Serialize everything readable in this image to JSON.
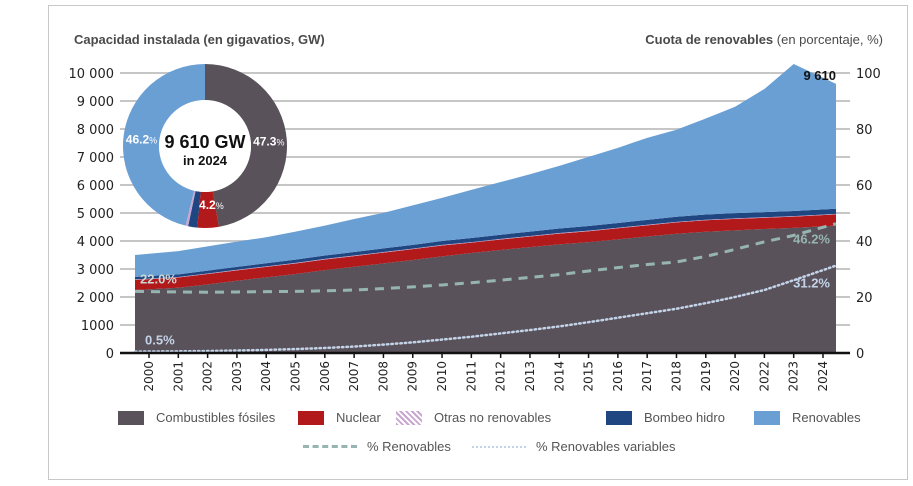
{
  "chart_data": {
    "type": "area",
    "title_left": "Capacidad instalada (en gigavatios, GW)",
    "title_right_bold": "Cuota de renovables",
    "title_right_normal": " (en porcentaje, %)",
    "x": [
      "2000",
      "2001",
      "2002",
      "2003",
      "2004",
      "2005",
      "2006",
      "2007",
      "2008",
      "2009",
      "2010",
      "2011",
      "2012",
      "2013",
      "2014",
      "2015",
      "2016",
      "2017",
      "2018",
      "2019",
      "2020",
      "2022",
      "2023",
      "2024"
    ],
    "ylim": [
      0,
      10000
    ],
    "yticks": [
      "0",
      "1000",
      "2 000",
      "3 000",
      "4 000",
      "5 000",
      "6 000",
      "7 000",
      "8 000",
      "9 000",
      "10 000"
    ],
    "y2lim": [
      0,
      100
    ],
    "y2ticks": [
      "0",
      "20",
      "40",
      "60",
      "80",
      "100"
    ],
    "grid": true,
    "stacked_series": [
      {
        "name": "Combustibles fósiles",
        "color": "#5a525b",
        "values": [
          2250,
          2330,
          2450,
          2580,
          2700,
          2820,
          2960,
          3080,
          3200,
          3320,
          3450,
          3570,
          3680,
          3780,
          3880,
          3960,
          4060,
          4160,
          4260,
          4330,
          4380,
          4430,
          4470,
          4550
        ]
      },
      {
        "name": "Nuclear",
        "color": "#b2191b",
        "values": [
          360,
          365,
          370,
          372,
          375,
          378,
          380,
          382,
          385,
          388,
          390,
          370,
          375,
          380,
          385,
          390,
          395,
          400,
          405,
          410,
          410,
          400,
          400,
          400
        ]
      },
      {
        "name": "Otras no renovables",
        "color": "#c9a6d0",
        "values": [
          20,
          20,
          20,
          20,
          20,
          20,
          20,
          20,
          20,
          20,
          20,
          20,
          20,
          20,
          20,
          20,
          20,
          20,
          20,
          20,
          20,
          20,
          20,
          20
        ]
      },
      {
        "name": "Bombeo hidro",
        "color": "#1f4680",
        "values": [
          90,
          95,
          100,
          105,
          110,
          115,
          120,
          125,
          130,
          135,
          140,
          145,
          150,
          155,
          160,
          165,
          170,
          175,
          180,
          185,
          185,
          180,
          180,
          180
        ]
      },
      {
        "name": "Renovables",
        "color": "#6a9fd4",
        "values": [
          780,
          830,
          870,
          900,
          930,
          1000,
          1070,
          1180,
          1270,
          1410,
          1540,
          1720,
          1880,
          2050,
          2240,
          2470,
          2680,
          2930,
          3110,
          3430,
          3800,
          4400,
          5250,
          4460
        ]
      }
    ],
    "total_label": "9 610",
    "line_series": [
      {
        "name": "% Renovables",
        "style": "dashed",
        "color": "#96b5b0",
        "values": [
          22.0,
          21.8,
          21.7,
          21.8,
          21.9,
          22.0,
          22.2,
          22.5,
          23.0,
          23.6,
          24.3,
          25.1,
          26.0,
          27.0,
          28.0,
          29.3,
          30.5,
          31.6,
          32.5,
          34.5,
          37.0,
          39.7,
          42.0,
          46.2
        ],
        "start_label": "22.0%",
        "end_label": "46.2%"
      },
      {
        "name": "% Renovables variables",
        "style": "dotted",
        "color": "#c4d4e8",
        "values": [
          0.5,
          0.6,
          0.7,
          0.9,
          1.1,
          1.4,
          1.8,
          2.3,
          3.0,
          3.8,
          4.8,
          5.8,
          7.0,
          8.2,
          9.5,
          11.0,
          12.6,
          14.2,
          15.8,
          17.8,
          20.0,
          22.5,
          26.0,
          31.2
        ],
        "start_label": "0.5%",
        "end_label": "31.2%"
      }
    ],
    "donut": {
      "center_value": "9 610 GW",
      "center_sub": "in 2024",
      "slices": [
        {
          "name": "Combustibles fósiles",
          "value": 47.3,
          "label": "47.3",
          "color": "#5a525b"
        },
        {
          "name": "Nuclear",
          "value": 4.2,
          "label": "4.2",
          "color": "#b2191b"
        },
        {
          "name": "Bombeo hidro",
          "value": 1.8,
          "label": "",
          "color": "#1f4680"
        },
        {
          "name": "Otras no renovables",
          "value": 0.5,
          "label": "",
          "color": "#c9a6d0"
        },
        {
          "name": "Renovables",
          "value": 46.2,
          "label": "46.2",
          "color": "#6a9fd4"
        }
      ],
      "pct_sign": "%"
    },
    "legend": {
      "position": "bottom",
      "items": [
        {
          "label": "Combustibles fósiles",
          "color": "#5a525b",
          "kind": "fill"
        },
        {
          "label": "Nuclear",
          "color": "#b2191b",
          "kind": "fill"
        },
        {
          "label": "Otras no renovables",
          "color": "#c9a6d0",
          "kind": "hatch"
        },
        {
          "label": "Bombeo hidro",
          "color": "#1f4680",
          "kind": "fill"
        },
        {
          "label": "Renovables",
          "color": "#6a9fd4",
          "kind": "fill"
        }
      ],
      "lines": [
        {
          "label": "%  Renovables",
          "kind": "dashed",
          "color": "#96b5b0"
        },
        {
          "label": "%  Renovables variables",
          "kind": "dotted",
          "color": "#c4d4e8"
        }
      ]
    }
  }
}
